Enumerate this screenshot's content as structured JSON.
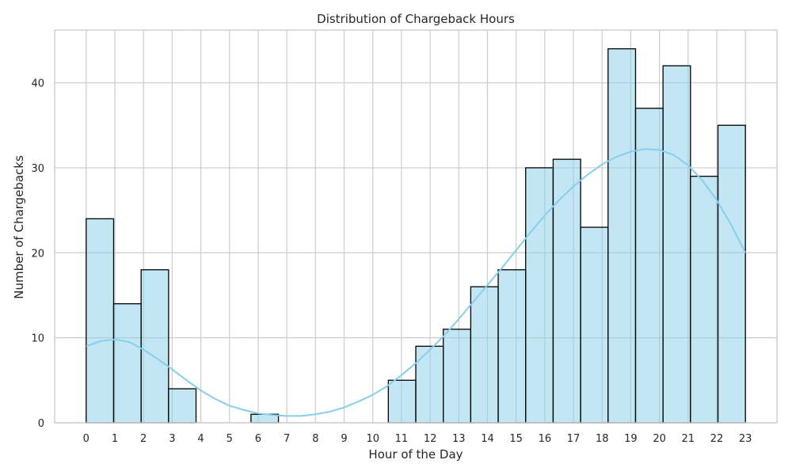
{
  "chart_data": {
    "type": "bar",
    "title": "Distribution of Chargeback Hours",
    "xlabel": "Hour of the Day",
    "ylabel": "Number of Chargebacks",
    "xlim": [
      -1.1,
      24.1
    ],
    "ylim": [
      0,
      46.2
    ],
    "xticks": [
      "0",
      "1",
      "2",
      "3",
      "4",
      "5",
      "6",
      "7",
      "8",
      "9",
      "10",
      "11",
      "12",
      "13",
      "14",
      "15",
      "16",
      "17",
      "18",
      "19",
      "20",
      "21",
      "22",
      "23"
    ],
    "yticks": [
      "0",
      "10",
      "20",
      "30",
      "40"
    ],
    "grid": true,
    "bins": [
      {
        "start": 0.0,
        "end": 0.958,
        "count": 24
      },
      {
        "start": 0.958,
        "end": 1.917,
        "count": 14
      },
      {
        "start": 1.917,
        "end": 2.875,
        "count": 18
      },
      {
        "start": 2.875,
        "end": 3.833,
        "count": 4
      },
      {
        "start": 3.833,
        "end": 4.792,
        "count": 0
      },
      {
        "start": 4.792,
        "end": 5.75,
        "count": 0
      },
      {
        "start": 5.75,
        "end": 6.708,
        "count": 1
      },
      {
        "start": 6.708,
        "end": 7.667,
        "count": 0
      },
      {
        "start": 7.667,
        "end": 8.625,
        "count": 0
      },
      {
        "start": 8.625,
        "end": 9.583,
        "count": 0
      },
      {
        "start": 9.583,
        "end": 10.542,
        "count": 0
      },
      {
        "start": 10.542,
        "end": 11.5,
        "count": 5
      },
      {
        "start": 11.5,
        "end": 12.458,
        "count": 9
      },
      {
        "start": 12.458,
        "end": 13.417,
        "count": 11
      },
      {
        "start": 13.417,
        "end": 14.375,
        "count": 16
      },
      {
        "start": 14.375,
        "end": 15.333,
        "count": 18
      },
      {
        "start": 15.333,
        "end": 16.292,
        "count": 30
      },
      {
        "start": 16.292,
        "end": 17.25,
        "count": 31
      },
      {
        "start": 17.25,
        "end": 18.208,
        "count": 23
      },
      {
        "start": 18.208,
        "end": 19.167,
        "count": 44
      },
      {
        "start": 19.167,
        "end": 20.125,
        "count": 37
      },
      {
        "start": 20.125,
        "end": 21.083,
        "count": 42
      },
      {
        "start": 21.083,
        "end": 22.042,
        "count": 29
      },
      {
        "start": 22.042,
        "end": 23.0,
        "count": 35
      }
    ],
    "kde": {
      "color": "#87ceeb",
      "points": [
        [
          0,
          9.0
        ],
        [
          0.5,
          9.6
        ],
        [
          1,
          9.8
        ],
        [
          1.5,
          9.5
        ],
        [
          2,
          8.6
        ],
        [
          2.5,
          7.5
        ],
        [
          3,
          6.3
        ],
        [
          3.5,
          5.0
        ],
        [
          4,
          3.8
        ],
        [
          4.5,
          2.8
        ],
        [
          5,
          2.0
        ],
        [
          5.5,
          1.5
        ],
        [
          6,
          1.1
        ],
        [
          6.5,
          0.9
        ],
        [
          7,
          0.8
        ],
        [
          7.5,
          0.8
        ],
        [
          8,
          1.0
        ],
        [
          8.5,
          1.3
        ],
        [
          9,
          1.8
        ],
        [
          9.5,
          2.5
        ],
        [
          10,
          3.3
        ],
        [
          10.5,
          4.3
        ],
        [
          11,
          5.6
        ],
        [
          11.5,
          7.0
        ],
        [
          12,
          8.6
        ],
        [
          12.5,
          10.3
        ],
        [
          13,
          12.2
        ],
        [
          13.5,
          14.2
        ],
        [
          14,
          16.2
        ],
        [
          14.5,
          18.2
        ],
        [
          15,
          20.3
        ],
        [
          15.5,
          22.4
        ],
        [
          16,
          24.4
        ],
        [
          16.5,
          26.2
        ],
        [
          17,
          27.8
        ],
        [
          17.5,
          29.2
        ],
        [
          18,
          30.4
        ],
        [
          18.5,
          31.3
        ],
        [
          19,
          31.9
        ],
        [
          19.5,
          32.2
        ],
        [
          20,
          32.1
        ],
        [
          20.5,
          31.5
        ],
        [
          21,
          30.3
        ],
        [
          21.5,
          28.5
        ],
        [
          22,
          26.2
        ],
        [
          22.5,
          23.3
        ],
        [
          23,
          20.0
        ]
      ]
    },
    "colors": {
      "bar_fill": "#87ceeb",
      "bar_edge": "#000000",
      "grid": "#cccccc"
    }
  }
}
